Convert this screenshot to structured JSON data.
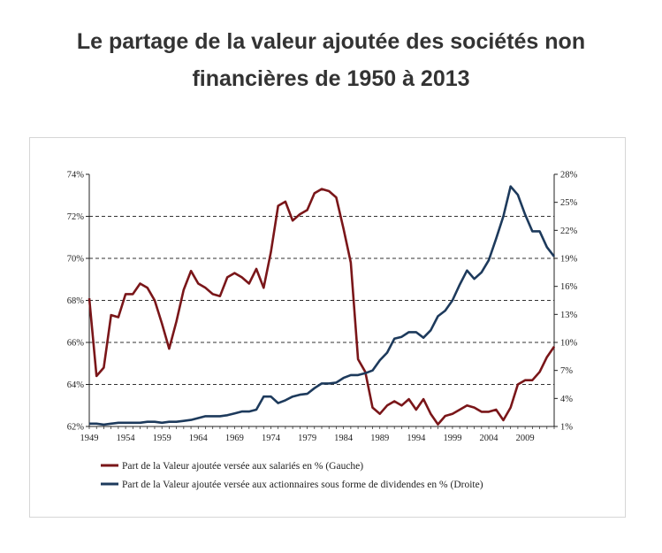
{
  "title_line1": "Le partage de la valeur ajoutée des sociétés non",
  "title_line2": "financières de 1950 à 2013",
  "colors": {
    "salaries": "#7a1619",
    "dividends": "#1d3a5c",
    "grid": "#333333",
    "axis": "#222222"
  },
  "chart_data": {
    "type": "line",
    "title": "",
    "xlabel": "",
    "x_ticks": [
      "1949",
      "1954",
      "1959",
      "1964",
      "1969",
      "1974",
      "1979",
      "1984",
      "1989",
      "1994",
      "1999",
      "2004",
      "2009"
    ],
    "xlim": [
      1949,
      2013
    ],
    "left_axis": {
      "ylim": [
        62,
        74
      ],
      "ticks": [
        "62%",
        "64%",
        "66%",
        "68%",
        "70%",
        "72%",
        "74%"
      ],
      "tick_values": [
        62,
        64,
        66,
        68,
        70,
        72,
        74
      ]
    },
    "right_axis": {
      "ylim": [
        1,
        28
      ],
      "ticks": [
        "1%",
        "4%",
        "7%",
        "10%",
        "13%",
        "16%",
        "19%",
        "22%",
        "25%",
        "28%"
      ],
      "tick_values": [
        1,
        4,
        7,
        10,
        13,
        16,
        19,
        22,
        25,
        28
      ]
    },
    "grid": "dashed horizontal at left-axis ticks",
    "legend_position": "bottom",
    "series": [
      {
        "name": "Part de la Valeur ajoutée versée aux salariés en % (Gauche)",
        "axis": "left",
        "x": [
          1949,
          1950,
          1951,
          1952,
          1953,
          1954,
          1955,
          1956,
          1957,
          1958,
          1959,
          1960,
          1961,
          1962,
          1963,
          1964,
          1965,
          1966,
          1967,
          1968,
          1969,
          1970,
          1971,
          1972,
          1973,
          1974,
          1975,
          1976,
          1977,
          1978,
          1979,
          1980,
          1981,
          1982,
          1983,
          1984,
          1985,
          1986,
          1987,
          1988,
          1989,
          1990,
          1991,
          1992,
          1993,
          1994,
          1995,
          1996,
          1997,
          1998,
          1999,
          2000,
          2001,
          2002,
          2003,
          2004,
          2005,
          2006,
          2007,
          2008,
          2009,
          2010,
          2011,
          2012,
          2013
        ],
        "values": [
          68.1,
          64.4,
          64.8,
          67.3,
          67.2,
          68.3,
          68.3,
          68.8,
          68.6,
          68.0,
          66.9,
          65.7,
          67.0,
          68.5,
          69.4,
          68.8,
          68.6,
          68.3,
          68.2,
          69.1,
          69.3,
          69.1,
          68.8,
          69.5,
          68.6,
          70.3,
          72.5,
          72.7,
          71.8,
          72.1,
          72.3,
          73.1,
          73.3,
          73.2,
          72.9,
          71.4,
          69.8,
          65.2,
          64.6,
          62.9,
          62.6,
          63.0,
          63.2,
          63.0,
          63.3,
          62.8,
          63.3,
          62.6,
          62.1,
          62.5,
          62.6,
          62.8,
          63.0,
          62.9,
          62.7,
          62.7,
          62.8,
          62.3,
          62.9,
          64.0,
          64.2,
          64.2,
          64.6,
          65.3,
          65.8
        ],
        "note": "values estimated from plot"
      },
      {
        "name": "Part de la Valeur ajoutée versée aux actionnaires sous forme de dividendes en % (Droite)",
        "axis": "right",
        "x": [
          1949,
          1950,
          1951,
          1952,
          1953,
          1954,
          1955,
          1956,
          1957,
          1958,
          1959,
          1960,
          1961,
          1962,
          1963,
          1964,
          1965,
          1966,
          1967,
          1968,
          1969,
          1970,
          1971,
          1972,
          1973,
          1974,
          1975,
          1976,
          1977,
          1978,
          1979,
          1980,
          1981,
          1982,
          1983,
          1984,
          1985,
          1986,
          1987,
          1988,
          1989,
          1990,
          1991,
          1992,
          1993,
          1994,
          1995,
          1996,
          1997,
          1998,
          1999,
          2000,
          2001,
          2002,
          2003,
          2004,
          2005,
          2006,
          2007,
          2008,
          2009,
          2010,
          2011,
          2012,
          2013
        ],
        "values": [
          1.3,
          1.3,
          1.2,
          1.3,
          1.4,
          1.4,
          1.4,
          1.4,
          1.5,
          1.5,
          1.4,
          1.5,
          1.5,
          1.6,
          1.7,
          1.9,
          2.1,
          2.1,
          2.1,
          2.2,
          2.4,
          2.6,
          2.6,
          2.8,
          4.2,
          4.2,
          3.5,
          3.8,
          4.2,
          4.4,
          4.5,
          5.1,
          5.6,
          5.6,
          5.7,
          6.2,
          6.5,
          6.5,
          6.7,
          7.0,
          8.1,
          8.9,
          10.4,
          10.6,
          11.1,
          11.1,
          10.5,
          11.3,
          12.8,
          13.4,
          14.5,
          16.2,
          17.7,
          16.8,
          17.5,
          18.8,
          21.1,
          23.5,
          26.7,
          25.8,
          23.7,
          21.9,
          21.9,
          20.2,
          19.2
        ],
        "note": "values estimated from plot"
      }
    ]
  }
}
